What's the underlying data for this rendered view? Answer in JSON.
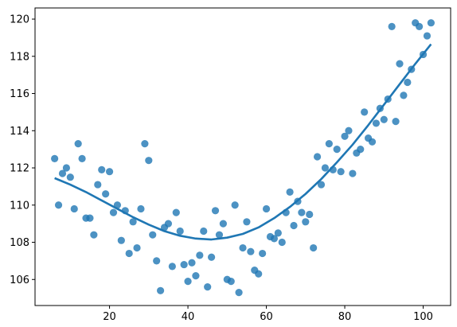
{
  "chart_data": {
    "type": "scatter",
    "title": "",
    "xlabel": "",
    "ylabel": "",
    "xlim": [
      1,
      107
    ],
    "ylim": [
      104.6,
      120.6
    ],
    "xticks": [
      20,
      40,
      60,
      80,
      100
    ],
    "yticks": [
      106,
      108,
      110,
      112,
      114,
      116,
      118,
      120
    ],
    "grid": false,
    "legend": "none",
    "colors": {
      "points": "#1f77b4",
      "fit_line": "#1f77b4"
    },
    "series": [
      {
        "kind": "scatter",
        "points": [
          [
            6,
            112.5
          ],
          [
            7,
            110.0
          ],
          [
            8,
            111.7
          ],
          [
            9,
            112.0
          ],
          [
            10,
            111.5
          ],
          [
            11,
            109.8
          ],
          [
            12,
            113.3
          ],
          [
            13,
            112.5
          ],
          [
            14,
            109.3
          ],
          [
            15,
            109.3
          ],
          [
            16,
            108.4
          ],
          [
            17,
            111.1
          ],
          [
            18,
            111.9
          ],
          [
            19,
            110.6
          ],
          [
            20,
            111.8
          ],
          [
            21,
            109.6
          ],
          [
            22,
            110.0
          ],
          [
            23,
            108.1
          ],
          [
            24,
            109.7
          ],
          [
            25,
            107.4
          ],
          [
            26,
            109.1
          ],
          [
            27,
            107.7
          ],
          [
            28,
            109.8
          ],
          [
            29,
            113.3
          ],
          [
            30,
            112.4
          ],
          [
            31,
            108.4
          ],
          [
            32,
            107.0
          ],
          [
            33,
            105.4
          ],
          [
            34,
            108.8
          ],
          [
            35,
            109.0
          ],
          [
            36,
            106.7
          ],
          [
            37,
            109.6
          ],
          [
            38,
            108.6
          ],
          [
            39,
            106.8
          ],
          [
            40,
            105.9
          ],
          [
            41,
            106.9
          ],
          [
            42,
            106.2
          ],
          [
            43,
            107.3
          ],
          [
            44,
            108.6
          ],
          [
            45,
            105.6
          ],
          [
            46,
            107.2
          ],
          [
            47,
            109.7
          ],
          [
            48,
            108.4
          ],
          [
            49,
            109.0
          ],
          [
            50,
            106.0
          ],
          [
            51,
            105.9
          ],
          [
            52,
            110.0
          ],
          [
            53,
            105.3
          ],
          [
            54,
            107.7
          ],
          [
            55,
            109.1
          ],
          [
            56,
            107.5
          ],
          [
            57,
            106.5
          ],
          [
            58,
            106.3
          ],
          [
            59,
            107.4
          ],
          [
            60,
            109.8
          ],
          [
            61,
            108.3
          ],
          [
            62,
            108.2
          ],
          [
            63,
            108.5
          ],
          [
            64,
            108.0
          ],
          [
            65,
            109.6
          ],
          [
            66,
            110.7
          ],
          [
            67,
            108.9
          ],
          [
            68,
            110.2
          ],
          [
            69,
            109.6
          ],
          [
            70,
            109.1
          ],
          [
            71,
            109.5
          ],
          [
            72,
            107.7
          ],
          [
            73,
            112.6
          ],
          [
            74,
            111.1
          ],
          [
            75,
            112.0
          ],
          [
            76,
            113.3
          ],
          [
            77,
            111.9
          ],
          [
            78,
            113.0
          ],
          [
            79,
            111.8
          ],
          [
            80,
            113.7
          ],
          [
            81,
            114.0
          ],
          [
            82,
            111.7
          ],
          [
            83,
            112.8
          ],
          [
            84,
            113.0
          ],
          [
            85,
            115.0
          ],
          [
            86,
            113.6
          ],
          [
            87,
            113.4
          ],
          [
            88,
            114.4
          ],
          [
            89,
            115.2
          ],
          [
            90,
            114.6
          ],
          [
            91,
            115.7
          ],
          [
            92,
            119.6
          ],
          [
            93,
            114.5
          ],
          [
            94,
            117.6
          ],
          [
            95,
            115.9
          ],
          [
            96,
            116.6
          ],
          [
            97,
            117.3
          ],
          [
            98,
            119.8
          ],
          [
            99,
            119.6
          ],
          [
            100,
            118.1
          ],
          [
            101,
            119.1
          ],
          [
            102,
            119.8
          ]
        ]
      },
      {
        "kind": "line",
        "points": [
          [
            6,
            111.45
          ],
          [
            10,
            111.1
          ],
          [
            14,
            110.7
          ],
          [
            18,
            110.25
          ],
          [
            22,
            109.8
          ],
          [
            26,
            109.35
          ],
          [
            30,
            108.95
          ],
          [
            34,
            108.6
          ],
          [
            38,
            108.35
          ],
          [
            42,
            108.2
          ],
          [
            46,
            108.15
          ],
          [
            50,
            108.25
          ],
          [
            54,
            108.45
          ],
          [
            58,
            108.8
          ],
          [
            62,
            109.3
          ],
          [
            66,
            109.9
          ],
          [
            70,
            110.6
          ],
          [
            74,
            111.4
          ],
          [
            78,
            112.3
          ],
          [
            82,
            113.25
          ],
          [
            86,
            114.3
          ],
          [
            90,
            115.4
          ],
          [
            94,
            116.5
          ],
          [
            98,
            117.6
          ],
          [
            102,
            118.65
          ]
        ]
      }
    ]
  }
}
